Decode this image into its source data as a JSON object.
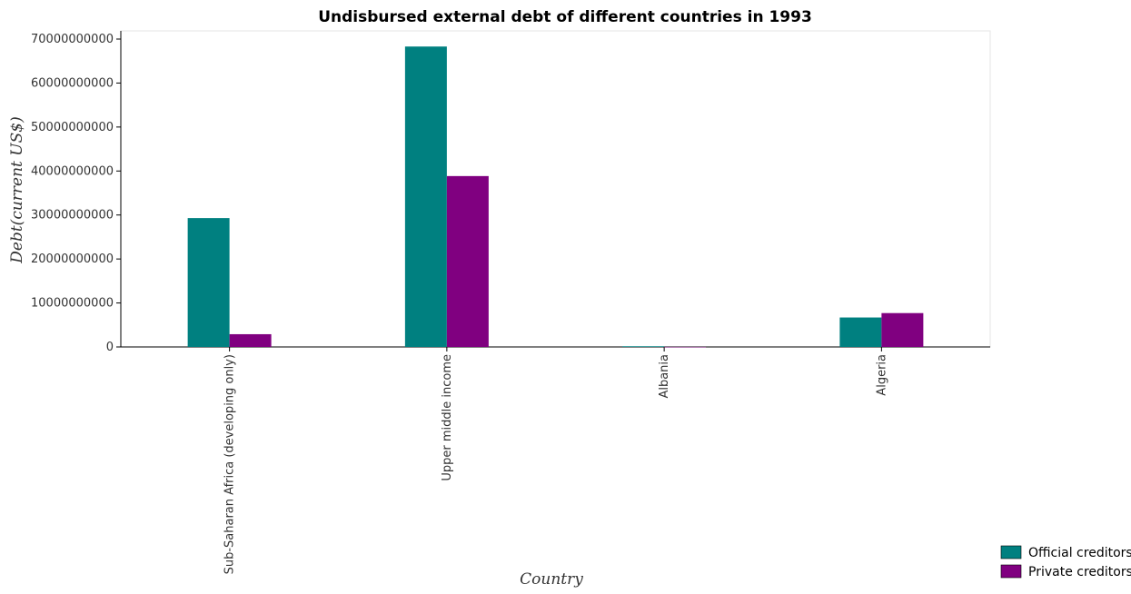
{
  "chart_data": {
    "type": "bar",
    "title": "Undisbursed external debt of different countries in 1993",
    "xlabel": "Country",
    "ylabel": "Debt(current US$)",
    "categories": [
      "Sub-Saharan Africa (developing only)",
      "Upper middle income",
      "Albania",
      "Algeria"
    ],
    "series": [
      {
        "name": "Official creditors",
        "color": "#008080",
        "values": [
          29300000000,
          68300000000,
          150000000,
          6700000000
        ]
      },
      {
        "name": "Private creditors",
        "color": "#800080",
        "values": [
          2900000000,
          38850000000,
          20000000,
          7700000000
        ]
      }
    ],
    "ylim": [
      0,
      70000000000
    ],
    "yticks": [
      0,
      10000000000,
      20000000000,
      30000000000,
      40000000000,
      50000000000,
      60000000000,
      70000000000
    ],
    "ytick_labels": [
      "0",
      "10000000000",
      "20000000000",
      "30000000000",
      "40000000000",
      "50000000000",
      "60000000000",
      "70000000000"
    ],
    "grid": false,
    "legend_position": "bottom-right"
  }
}
